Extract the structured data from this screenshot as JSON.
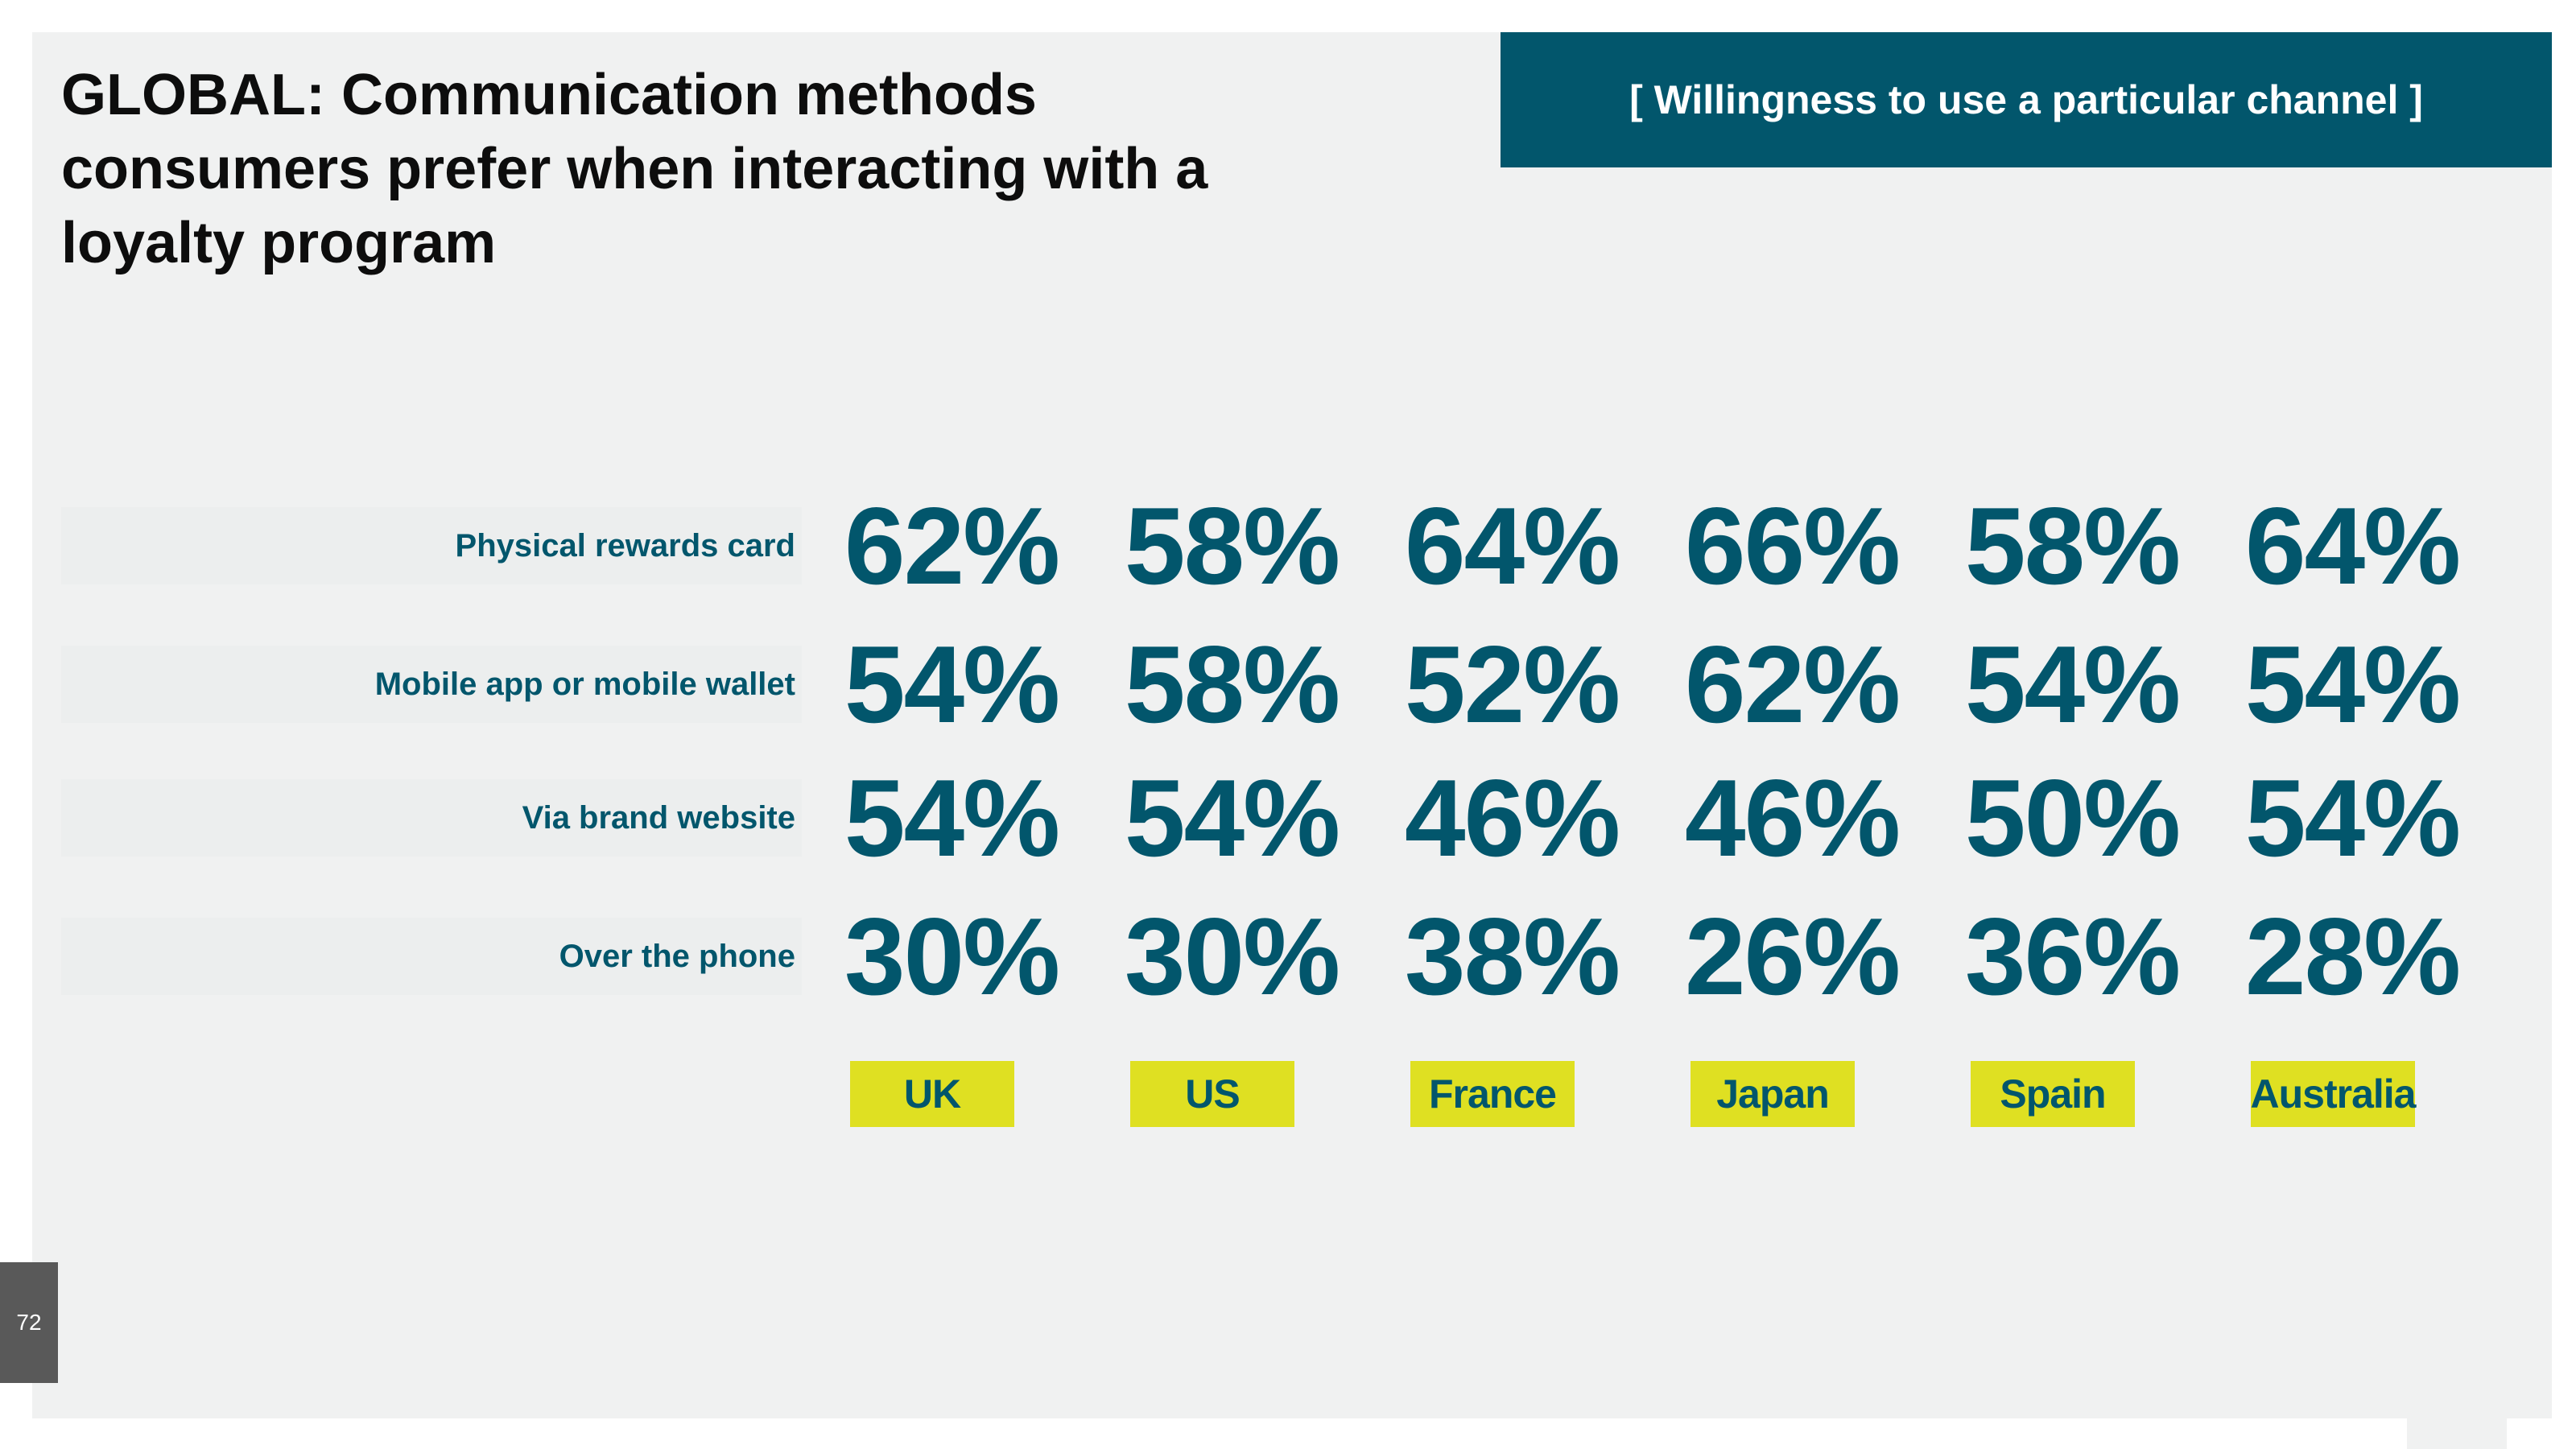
{
  "slide": {
    "title": "GLOBAL: Communication methods consumers prefer when interacting with a loyalty program",
    "banner": "[ Willingness to use a particular channel ]",
    "page_number": "72"
  },
  "colors": {
    "accent": "#02566c",
    "highlight": "#dfe022",
    "background": "#f0f1f1",
    "page_badge": "#595959"
  },
  "chart_data": {
    "type": "table",
    "title": "GLOBAL: Communication methods consumers prefer when interacting with a loyalty program",
    "subtitle": "[ Willingness to use a particular channel ]",
    "columns": [
      "UK",
      "US",
      "France",
      "Japan",
      "Spain",
      "Australia"
    ],
    "rows": [
      {
        "label": "Physical rewards card",
        "values": [
          "62%",
          "58%",
          "64%",
          "66%",
          "58%",
          "64%"
        ]
      },
      {
        "label": "Mobile app or mobile wallet",
        "values": [
          "54%",
          "58%",
          "52%",
          "62%",
          "54%",
          "54%"
        ]
      },
      {
        "label": "Via brand website",
        "values": [
          "54%",
          "54%",
          "46%",
          "46%",
          "50%",
          "54%"
        ]
      },
      {
        "label": "Over the phone",
        "values": [
          "30%",
          "30%",
          "38%",
          "26%",
          "36%",
          "28%"
        ]
      }
    ]
  }
}
